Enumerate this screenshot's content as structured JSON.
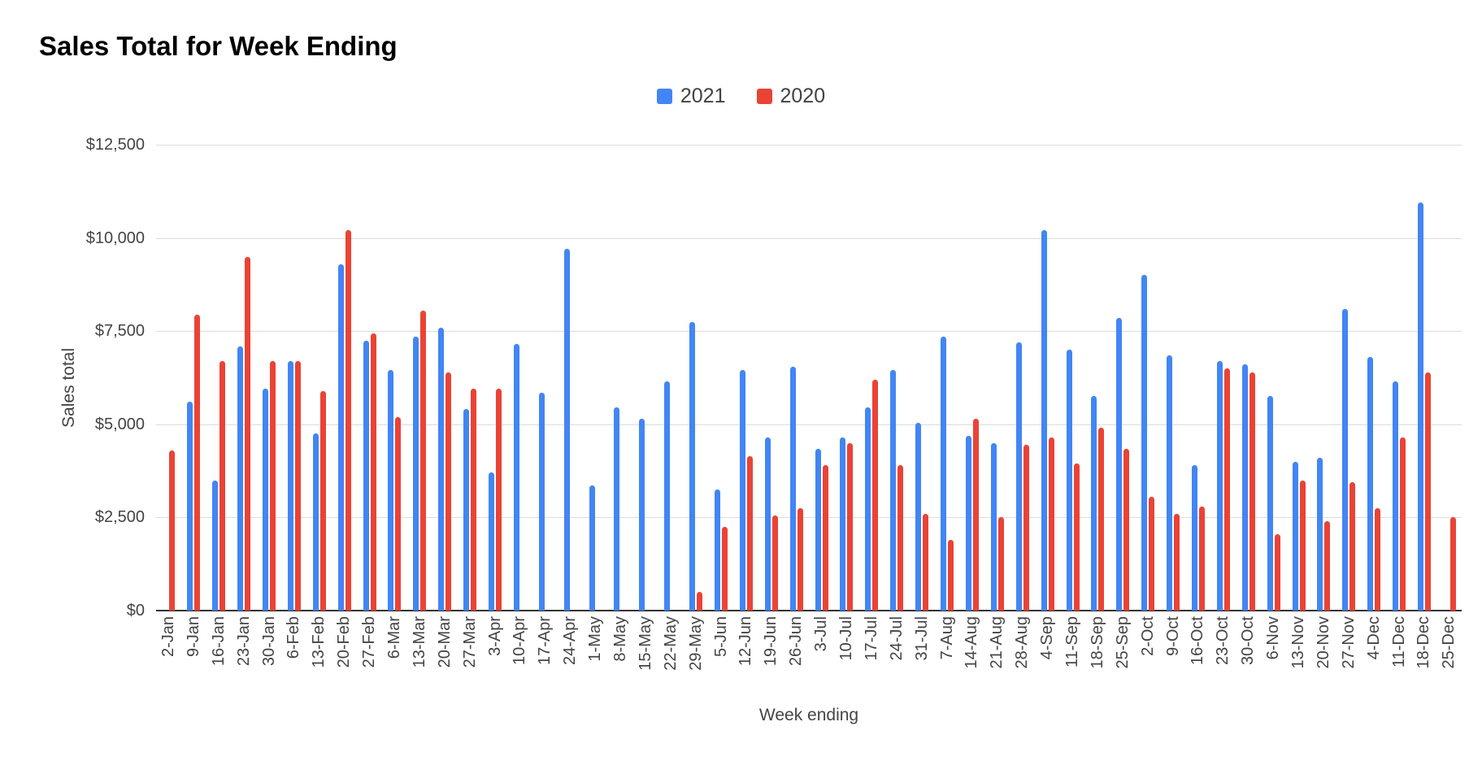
{
  "title": "Sales Total for Week Ending",
  "colors": {
    "series_2021": "#4285F4",
    "series_2020": "#EA4335",
    "gridline": "#dcdcdc",
    "axis_line": "#333333",
    "tick_text": "#444444",
    "title_text": "#000000",
    "legend_text": "#424242",
    "background": "#ffffff"
  },
  "legend": [
    {
      "label": "2021",
      "color": "#4285F4"
    },
    {
      "label": "2020",
      "color": "#EA4335"
    }
  ],
  "chart_data": {
    "type": "bar",
    "title": "Sales Total for Week Ending",
    "xlabel": "Week ending",
    "ylabel": "Sales total",
    "ylim": [
      0,
      12500
    ],
    "grid": true,
    "legend_position": "top-center",
    "y_ticks": [
      {
        "label": "$12,500",
        "value": 12500
      },
      {
        "label": "$10,000",
        "value": 10000
      },
      {
        "label": "$7,500",
        "value": 7500
      },
      {
        "label": "$5,000",
        "value": 5000
      },
      {
        "label": "$2,500",
        "value": 2500
      },
      {
        "label": "$0",
        "value": 0
      }
    ],
    "categories": [
      "2-Jan",
      "9-Jan",
      "16-Jan",
      "23-Jan",
      "30-Jan",
      "6-Feb",
      "13-Feb",
      "20-Feb",
      "27-Feb",
      "6-Mar",
      "13-Mar",
      "20-Mar",
      "27-Mar",
      "3-Apr",
      "10-Apr",
      "17-Apr",
      "24-Apr",
      "1-May",
      "8-May",
      "15-May",
      "22-May",
      "29-May",
      "5-Jun",
      "12-Jun",
      "19-Jun",
      "26-Jun",
      "3-Jul",
      "10-Jul",
      "17-Jul",
      "24-Jul",
      "31-Jul",
      "7-Aug",
      "14-Aug",
      "21-Aug",
      "28-Aug",
      "4-Sep",
      "11-Sep",
      "18-Sep",
      "25-Sep",
      "2-Oct",
      "9-Oct",
      "16-Oct",
      "23-Oct",
      "30-Oct",
      "6-Nov",
      "13-Nov",
      "20-Nov",
      "27-Nov",
      "4-Dec",
      "11-Dec",
      "18-Dec",
      "25-Dec"
    ],
    "series": [
      {
        "name": "2021",
        "color": "#4285F4",
        "values": [
          null,
          5600,
          3500,
          7100,
          5950,
          6700,
          4750,
          9300,
          7250,
          6450,
          7350,
          7600,
          5400,
          3700,
          7150,
          5850,
          9700,
          3350,
          5450,
          5150,
          6150,
          7750,
          3250,
          6450,
          4650,
          6550,
          4350,
          4650,
          5450,
          6450,
          5050,
          7350,
          4700,
          4500,
          7200,
          10200,
          7000,
          5750,
          7850,
          9000,
          6850,
          3900,
          6700,
          6600,
          5750,
          4000,
          4100,
          8100,
          6800,
          6150,
          10950,
          null
        ]
      },
      {
        "name": "2020",
        "color": "#EA4335",
        "values": [
          4300,
          7950,
          6700,
          9500,
          6700,
          6700,
          5900,
          10200,
          7450,
          5200,
          8050,
          6400,
          5950,
          5950,
          null,
          null,
          null,
          null,
          null,
          null,
          null,
          500,
          2250,
          4150,
          2550,
          2750,
          3900,
          4500,
          6200,
          3900,
          2600,
          1900,
          5150,
          2500,
          4450,
          4650,
          3950,
          4900,
          4350,
          3050,
          2600,
          2800,
          6500,
          6400,
          2050,
          3500,
          2400,
          3450,
          2750,
          4650,
          6400,
          2500
        ]
      }
    ]
  }
}
